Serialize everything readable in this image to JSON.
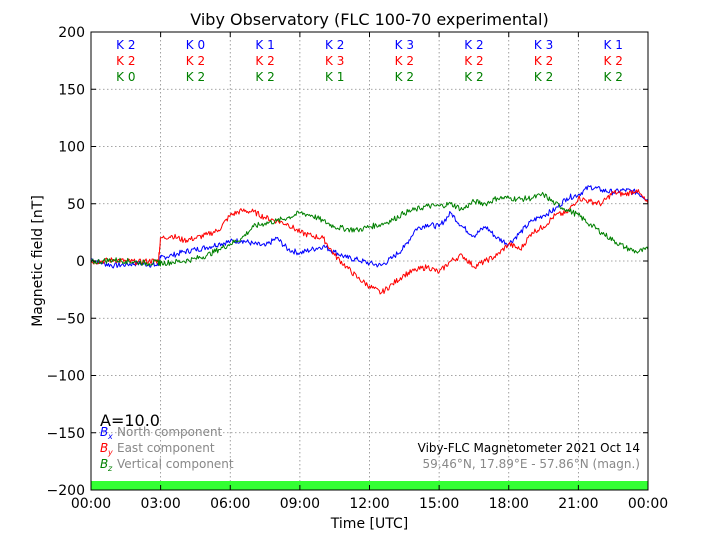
{
  "chart_data": {
    "type": "line",
    "title": "Viby Observatory (FLC 100-70 experimental)",
    "xlabel": "Time [UTC]",
    "ylabel": "Magnetic field [nT]",
    "xlim": [
      0,
      24
    ],
    "ylim": [
      -200,
      200
    ],
    "x_ticks": [
      0,
      3,
      6,
      9,
      12,
      15,
      18,
      21,
      24
    ],
    "x_tick_labels": [
      "00:00",
      "03:00",
      "06:00",
      "09:00",
      "12:00",
      "15:00",
      "18:00",
      "21:00",
      "00:00"
    ],
    "y_ticks": [
      -200,
      -150,
      -100,
      -50,
      0,
      50,
      100,
      150,
      200
    ],
    "y_tick_labels": [
      "−200",
      "−150",
      "−100",
      "−50",
      "0",
      "50",
      "100",
      "150",
      "200"
    ],
    "grid": true,
    "legend_position": "bottom-left",
    "series": [
      {
        "name": "North component",
        "symbol": "B",
        "subscript": "x",
        "color": "#0000ff",
        "x": [
          0,
          0.5,
          1,
          1.5,
          2,
          2.5,
          2.9,
          3.0,
          3.5,
          4,
          4.5,
          5,
          5.5,
          6,
          6.5,
          7,
          7.5,
          8,
          8.5,
          9,
          9.5,
          10,
          10.5,
          11,
          11.5,
          12,
          12.5,
          13,
          13.5,
          14,
          14.5,
          15,
          15.5,
          16,
          16.5,
          17,
          17.5,
          18,
          18.5,
          19,
          19.5,
          20,
          20.5,
          21,
          21.5,
          22,
          22.5,
          23,
          23.5,
          24
        ],
        "values": [
          2,
          -2,
          -4,
          -3,
          -2,
          -3,
          -4,
          3,
          5,
          8,
          10,
          12,
          15,
          17,
          18,
          15,
          13,
          20,
          10,
          7,
          10,
          13,
          8,
          3,
          1,
          -2,
          -4,
          3,
          12,
          28,
          32,
          30,
          42,
          30,
          22,
          30,
          20,
          15,
          25,
          35,
          40,
          45,
          55,
          58,
          65,
          62,
          60,
          62,
          60,
          54
        ]
      },
      {
        "name": "East component",
        "symbol": "B",
        "subscript": "y",
        "color": "#ff0000",
        "x": [
          0,
          0.5,
          1,
          1.5,
          2,
          2.5,
          2.9,
          3.0,
          3.5,
          4,
          4.5,
          5,
          5.5,
          6,
          6.5,
          7,
          7.5,
          8,
          8.5,
          9,
          9.5,
          10,
          10.5,
          11,
          11.5,
          12,
          12.5,
          13,
          13.5,
          14,
          14.5,
          15,
          15.5,
          16,
          16.5,
          17,
          17.5,
          18,
          18.5,
          19,
          19.5,
          20,
          20.5,
          21,
          21.5,
          22,
          22.5,
          23,
          23.5,
          24
        ],
        "values": [
          -1,
          0,
          1,
          0,
          -1,
          0,
          0,
          20,
          22,
          18,
          20,
          23,
          27,
          40,
          44,
          43,
          38,
          35,
          32,
          25,
          22,
          20,
          5,
          -5,
          -15,
          -22,
          -28,
          -20,
          -12,
          -8,
          -5,
          -10,
          0,
          5,
          -5,
          0,
          5,
          15,
          10,
          25,
          30,
          40,
          42,
          55,
          52,
          50,
          60,
          58,
          62,
          50
        ]
      },
      {
        "name": "Vertical component",
        "symbol": "B",
        "subscript": "z",
        "color": "#008000",
        "x": [
          0,
          0.5,
          1,
          1.5,
          2,
          2.5,
          2.9,
          3.0,
          3.5,
          4,
          4.5,
          5,
          5.5,
          6,
          6.5,
          7,
          7.5,
          8,
          8.5,
          9,
          9.5,
          10,
          10.5,
          11,
          11.5,
          12,
          12.5,
          13,
          13.5,
          14,
          14.5,
          15,
          15.5,
          16,
          16.5,
          17,
          17.5,
          18,
          18.5,
          19,
          19.5,
          20,
          20.5,
          21,
          21.5,
          22,
          22.5,
          23,
          23.5,
          24
        ],
        "values": [
          -1,
          0,
          1,
          0,
          -1,
          -2,
          -1,
          -2,
          -1,
          0,
          2,
          5,
          10,
          15,
          20,
          30,
          33,
          35,
          38,
          42,
          40,
          35,
          30,
          28,
          27,
          30,
          32,
          36,
          42,
          45,
          48,
          48,
          50,
          45,
          52,
          50,
          55,
          55,
          54,
          55,
          58,
          50,
          45,
          40,
          32,
          25,
          18,
          12,
          8,
          10
        ]
      }
    ],
    "k_indices": [
      {
        "x_center": 1.5,
        "values": [
          "K 2",
          "K 2",
          "K 0"
        ]
      },
      {
        "x_center": 4.5,
        "values": [
          "K 0",
          "K 2",
          "K 2"
        ]
      },
      {
        "x_center": 7.5,
        "values": [
          "K 1",
          "K 2",
          "K 2"
        ]
      },
      {
        "x_center": 10.5,
        "values": [
          "K 2",
          "K 3",
          "K 1"
        ]
      },
      {
        "x_center": 13.5,
        "values": [
          "K 3",
          "K 2",
          "K 2"
        ]
      },
      {
        "x_center": 16.5,
        "values": [
          "K 2",
          "K 2",
          "K 2"
        ]
      },
      {
        "x_center": 19.5,
        "values": [
          "K 3",
          "K 2",
          "K 2"
        ]
      },
      {
        "x_center": 22.5,
        "values": [
          "K 1",
          "K 2",
          "K 2"
        ]
      }
    ],
    "a_index_label": "A=10.0",
    "activity_bar_color": "#33ff33",
    "station_label": "Viby-FLC Magnetometer 2021 Oct 14",
    "coordinates_label": "59.46°N, 17.89°E - 57.86°N (magn.)"
  }
}
